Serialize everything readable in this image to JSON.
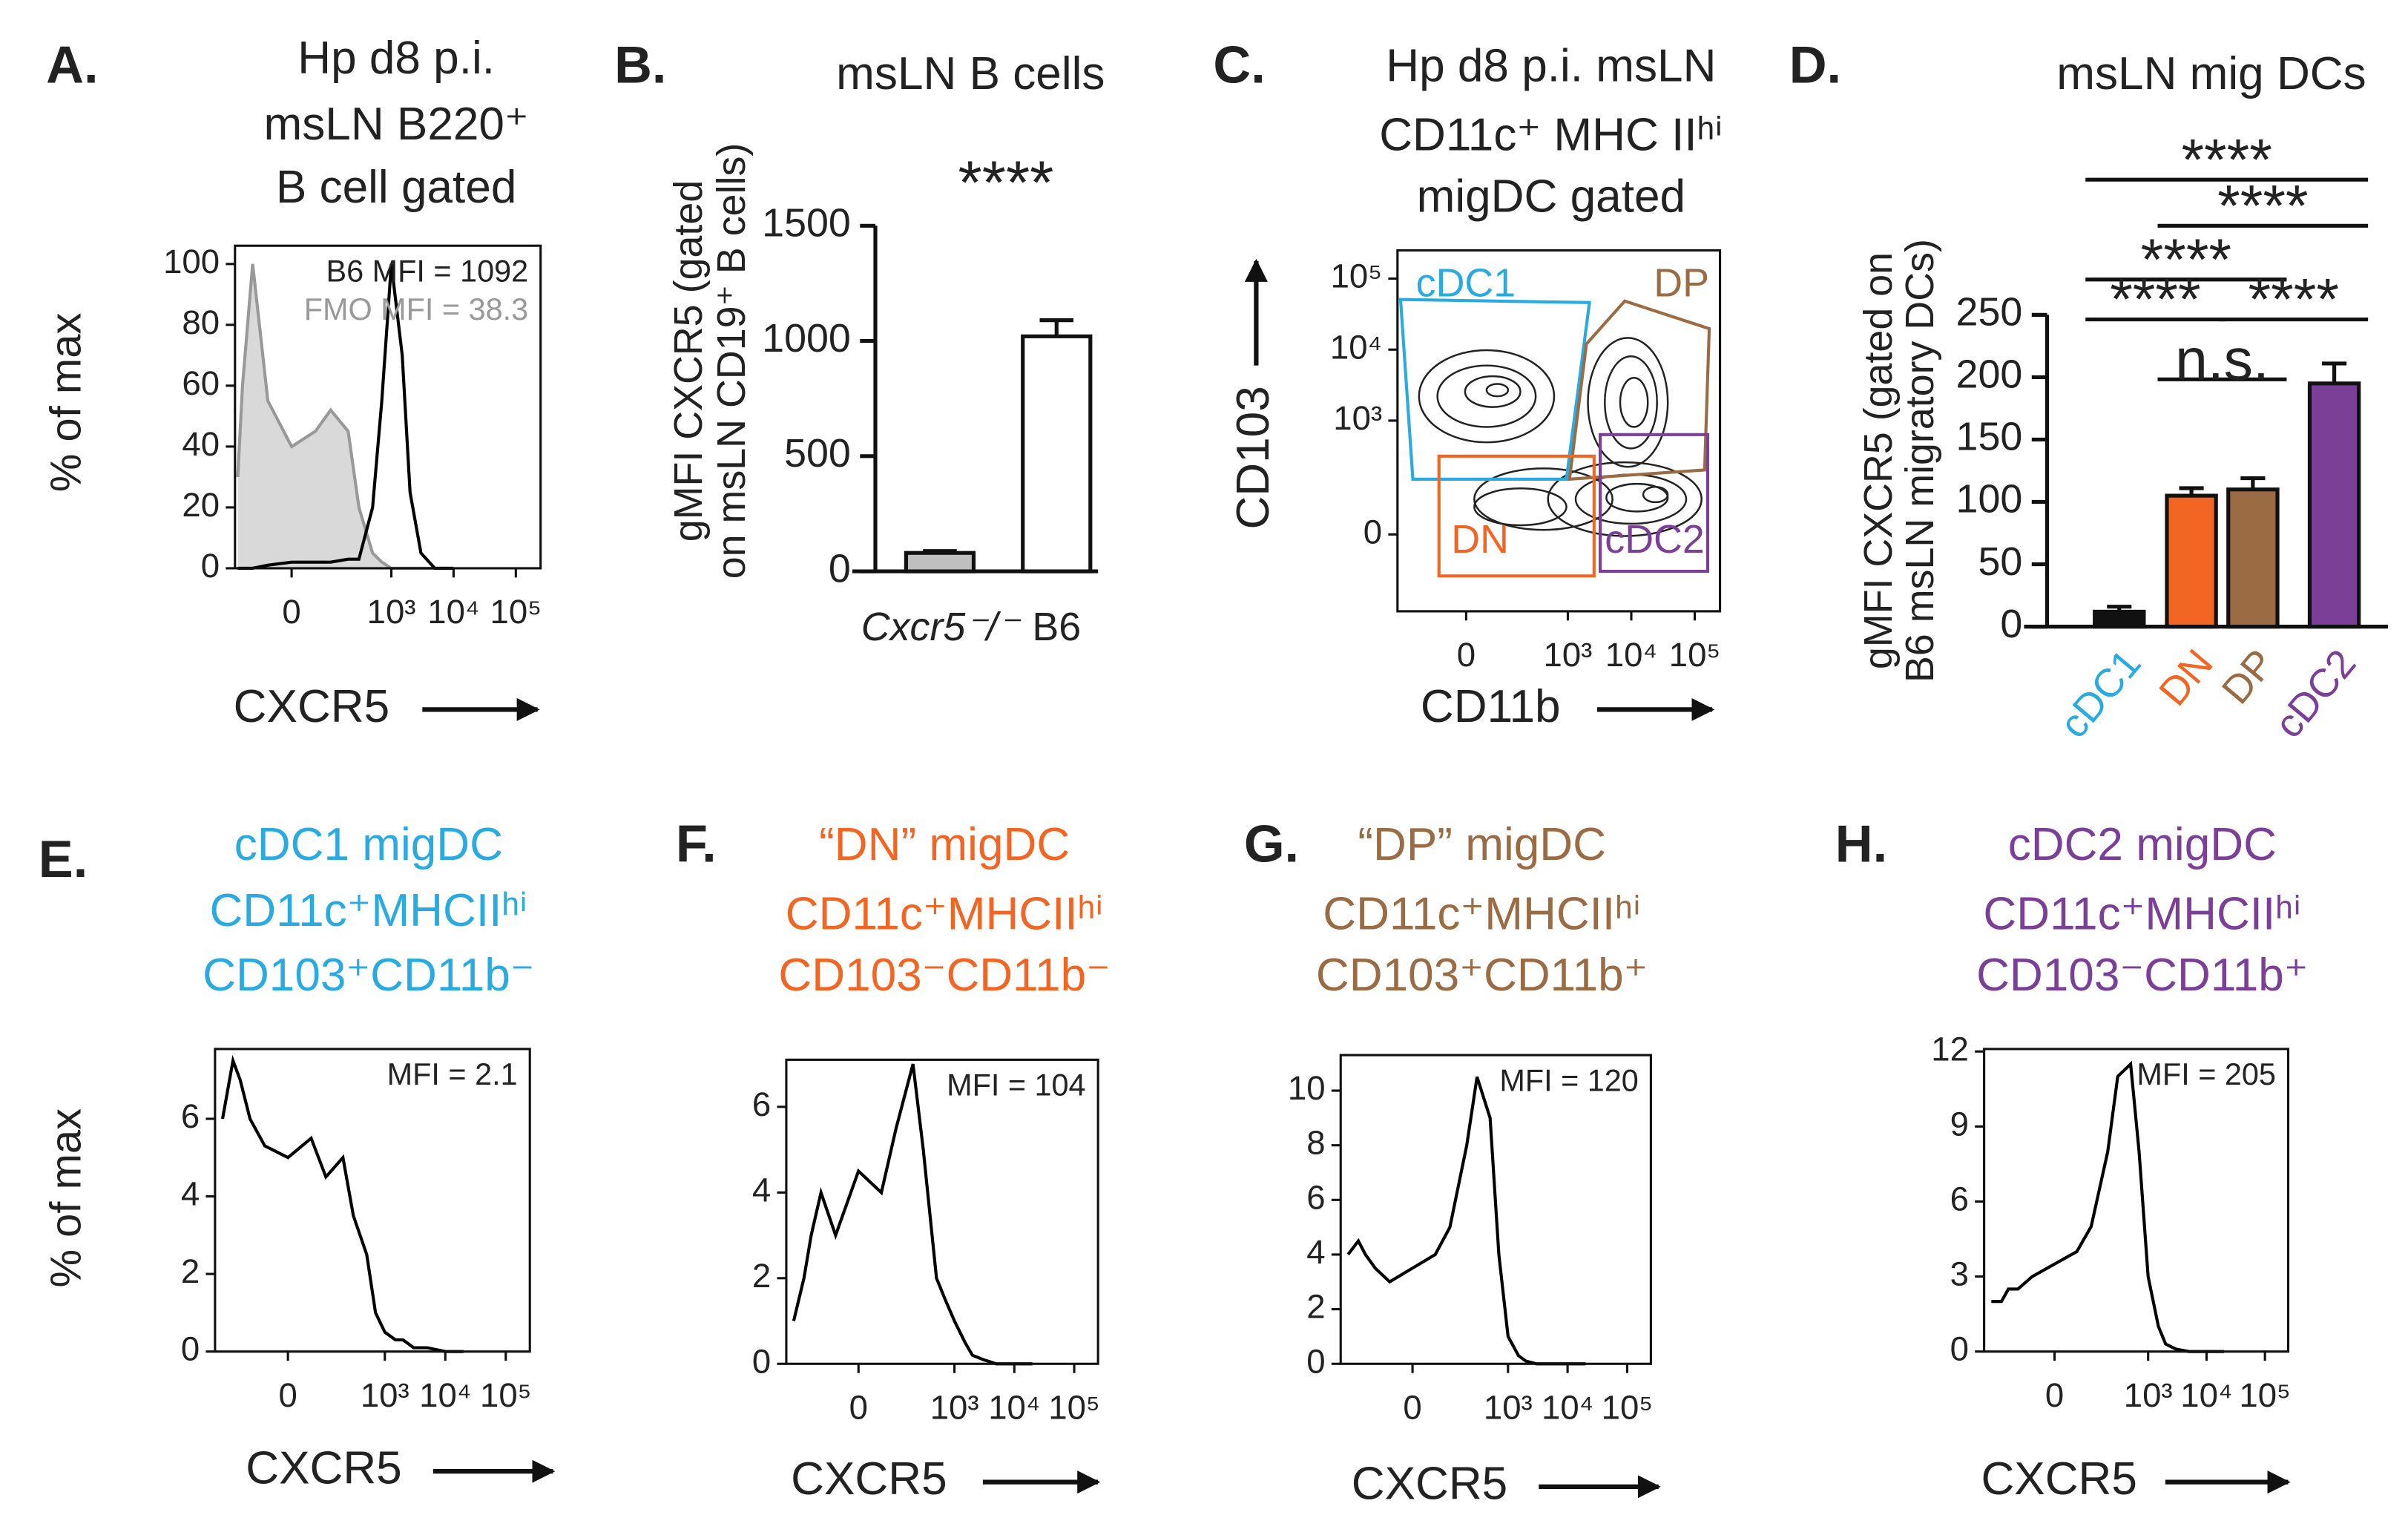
{
  "chart_data": [
    {
      "type": "line",
      "panel_label": "A.",
      "title": [
        "Hp d8 p.i.",
        "msLN B220⁺",
        "B cell gated"
      ],
      "xlabel": "CXCR5",
      "ylabel": "% of max",
      "xscale": "biexponential",
      "x": [
        -180,
        -150,
        -100,
        -50,
        0,
        50,
        100,
        200,
        300,
        500,
        700,
        1000,
        1500,
        2000,
        3000,
        5000,
        10000
      ],
      "series": [
        {
          "color": "#999999",
          "fill": "#d9d9d9",
          "values": [
            30,
            60,
            100,
            55,
            40,
            45,
            52,
            45,
            20,
            5,
            2,
            0,
            0,
            0,
            0,
            0,
            0
          ]
        },
        {
          "color": "#000000",
          "values": [
            0,
            0,
            0,
            1,
            2,
            2,
            2,
            3,
            3,
            20,
            55,
            100,
            70,
            25,
            5,
            0,
            0
          ]
        }
      ],
      "annotations": [
        {
          "text": "B6 MFI = 1092",
          "color": "#222222"
        },
        {
          "text": "FMO MFI = 38.3",
          "color": "#999999"
        }
      ],
      "xlim": [
        -200,
        250000
      ],
      "xticks": [
        0,
        {
          "value": 1000,
          "label": "10³"
        },
        {
          "value": 10000,
          "label": "10⁴"
        },
        {
          "value": 100000,
          "label": "10⁵"
        }
      ],
      "ylim": [
        0,
        106
      ],
      "yticks": [
        0,
        20,
        40,
        60,
        80,
        100
      ]
    },
    {
      "type": "bar",
      "panel_label": "B.",
      "title": [
        "msLN B cells"
      ],
      "ylabel": [
        "gMFI CXCR5 (gated",
        "on msLN CD19⁺ B cells)"
      ],
      "categories": [
        "Cxcr5⁻/⁻",
        "B6"
      ],
      "values": [
        80,
        1020
      ],
      "errors": [
        8,
        70
      ],
      "colors": [
        "#bfbfbf",
        "#ffffff"
      ],
      "annotations": [
        "****"
      ],
      "ylim": [
        0,
        1500
      ],
      "yticks": [
        0,
        500,
        1000,
        1500
      ]
    },
    {
      "type": "contour",
      "panel_label": "C.",
      "title": [
        "Hp d8 p.i. msLN",
        "CD11c⁺ MHC IIʰⁱ",
        "migDC gated"
      ],
      "xlabel": "CD11b",
      "ylabel": "CD103",
      "xscale": "biexponential",
      "yscale": "biexponential",
      "gates": [
        {
          "name": "cDC1",
          "color": "#29abe2"
        },
        {
          "name": "DP",
          "color": "#9b6b43"
        },
        {
          "name": "DN",
          "color": "#f26522"
        },
        {
          "name": "cDC2",
          "color": "#7b3f98"
        }
      ],
      "xlim": [
        -300,
        250000
      ],
      "xticks": [
        0,
        {
          "value": 1000,
          "label": "10³"
        },
        {
          "value": 10000,
          "label": "10⁴"
        },
        {
          "value": 100000,
          "label": "10⁵"
        }
      ],
      "ylim": [
        -300,
        250000
      ],
      "yticks": [
        0,
        {
          "value": 1000,
          "label": "10³"
        },
        {
          "value": 10000,
          "label": "10⁴"
        },
        {
          "value": 100000,
          "label": "10⁵"
        }
      ]
    },
    {
      "type": "bar",
      "panel_label": "D.",
      "title": [
        "msLN mig DCs"
      ],
      "ylabel": [
        "gMFI CXCR5 (gated on",
        "B6 msLN migratory DCs)"
      ],
      "categories": [
        "cDC1",
        "DN",
        "DP",
        "cDC2"
      ],
      "values": [
        12,
        105,
        110,
        195
      ],
      "errors": [
        4,
        6,
        9,
        16
      ],
      "colors": [
        "#111111",
        "#f26522",
        "#9b6b43",
        "#7b3f98"
      ],
      "category_colors": [
        "#29abe2",
        "#f26522",
        "#9b6b43",
        "#7b3f98"
      ],
      "comparisons": [
        {
          "pair": [
            0,
            3
          ],
          "label": "****"
        },
        {
          "pair": [
            1,
            3
          ],
          "label": "****"
        },
        {
          "pair": [
            0,
            2
          ],
          "label": "****"
        },
        {
          "pair": [
            0,
            1
          ],
          "label": "****"
        },
        {
          "pair": [
            1,
            2
          ],
          "label": "n.s."
        },
        {
          "pair": [
            2,
            3
          ],
          "label": "****"
        }
      ],
      "ylim": [
        0,
        250
      ],
      "yticks": [
        0,
        50,
        100,
        150,
        200,
        250
      ]
    },
    {
      "type": "line",
      "panel_label": "E.",
      "title": [
        "cDC1 migDC",
        "CD11c⁺MHCIIʰⁱ",
        "CD103⁺CD11b⁻"
      ],
      "title_color": "#29abe2",
      "xlabel": "CXCR5",
      "ylabel": "% of max",
      "xscale": "biexponential",
      "x": [
        -300,
        -200,
        -150,
        -100,
        -50,
        0,
        50,
        100,
        200,
        300,
        500,
        700,
        1000,
        1500,
        2000,
        3000,
        5000,
        10000,
        20000
      ],
      "series": [
        {
          "color": "#000000",
          "values": [
            6,
            7.5,
            7,
            6,
            5.3,
            5,
            5.5,
            4.5,
            5,
            3.5,
            2.5,
            1,
            0.5,
            0.3,
            0.3,
            0.1,
            0.1,
            0,
            0
          ]
        }
      ],
      "annotations": [
        {
          "text": "MFI = 2.1",
          "color": "#222222"
        }
      ],
      "xlim": [
        -400,
        250000
      ],
      "xticks": [
        0,
        {
          "value": 1000,
          "label": "10³"
        },
        {
          "value": 10000,
          "label": "10⁴"
        },
        {
          "value": 100000,
          "label": "10⁵"
        }
      ],
      "ylim": [
        0,
        7.8
      ],
      "yticks": [
        0,
        2,
        4,
        6
      ]
    },
    {
      "type": "line",
      "panel_label": "F.",
      "title": [
        "“DN” migDC",
        "CD11c⁺MHCIIʰⁱ",
        "CD103⁻CD11b⁻"
      ],
      "title_color": "#f26522",
      "xlabel": "CXCR5",
      "xscale": "biexponential",
      "x": [
        -300,
        -200,
        -150,
        -100,
        -50,
        0,
        50,
        100,
        200,
        300,
        500,
        700,
        1000,
        1500,
        2000,
        3000,
        5000,
        10000,
        20000
      ],
      "series": [
        {
          "color": "#000000",
          "values": [
            1,
            2,
            3,
            4,
            3,
            4.5,
            4,
            5.5,
            7,
            5,
            2,
            1.5,
            1,
            0.5,
            0.2,
            0.1,
            0,
            0,
            0
          ]
        }
      ],
      "annotations": [
        {
          "text": "MFI = 104",
          "color": "#222222"
        }
      ],
      "xlim": [
        -400,
        250000
      ],
      "xticks": [
        0,
        {
          "value": 1000,
          "label": "10³"
        },
        {
          "value": 10000,
          "label": "10⁴"
        },
        {
          "value": 100000,
          "label": "10⁵"
        }
      ],
      "ylim": [
        0,
        7.1
      ],
      "yticks": [
        0,
        2,
        4,
        6
      ]
    },
    {
      "type": "line",
      "panel_label": "G.",
      "title": [
        "“DP” migDC",
        "CD11c⁺MHCIIʰⁱ",
        "CD103⁺CD11b⁺"
      ],
      "title_color": "#9b6b43",
      "xlabel": "CXCR5",
      "xscale": "biexponential",
      "x": [
        -300,
        -200,
        -150,
        -100,
        -50,
        0,
        50,
        100,
        200,
        300,
        500,
        700,
        1000,
        1500,
        2000,
        3000,
        5000,
        10000,
        20000
      ],
      "series": [
        {
          "color": "#000000",
          "values": [
            4,
            4.5,
            4,
            3.5,
            3,
            3.5,
            4,
            5,
            8,
            10.5,
            9,
            4,
            1,
            0.3,
            0.1,
            0,
            0,
            0,
            0
          ]
        }
      ],
      "annotations": [
        {
          "text": "MFI = 120",
          "color": "#222222"
        }
      ],
      "xlim": [
        -400,
        250000
      ],
      "xticks": [
        0,
        {
          "value": 1000,
          "label": "10³"
        },
        {
          "value": 10000,
          "label": "10⁴"
        },
        {
          "value": 100000,
          "label": "10⁵"
        }
      ],
      "ylim": [
        0,
        11.3
      ],
      "yticks": [
        0,
        2,
        4,
        6,
        8,
        10
      ]
    },
    {
      "type": "line",
      "panel_label": "H.",
      "title": [
        "cDC2 migDC",
        "CD11c⁺MHCIIʰⁱ",
        "CD103⁻CD11b⁺"
      ],
      "title_color": "#7b3f98",
      "xlabel": "CXCR5",
      "xscale": "biexponential",
      "x": [
        -300,
        -200,
        -150,
        -100,
        -50,
        0,
        50,
        100,
        200,
        300,
        500,
        700,
        1000,
        1500,
        2000,
        3000,
        5000,
        10000,
        20000
      ],
      "series": [
        {
          "color": "#000000",
          "values": [
            2,
            2,
            2.5,
            2.5,
            3,
            3.5,
            4,
            5,
            8,
            11,
            11.5,
            8,
            3,
            1,
            0.3,
            0.1,
            0,
            0,
            0
          ]
        }
      ],
      "annotations": [
        {
          "text": "MFI = 205",
          "color": "#222222"
        }
      ],
      "xlim": [
        -400,
        250000
      ],
      "xticks": [
        0,
        {
          "value": 1000,
          "label": "10³"
        },
        {
          "value": 10000,
          "label": "10⁴"
        },
        {
          "value": 100000,
          "label": "10⁵"
        }
      ],
      "ylim": [
        0,
        12.1
      ],
      "yticks": [
        0,
        3,
        6,
        9,
        12
      ]
    }
  ]
}
